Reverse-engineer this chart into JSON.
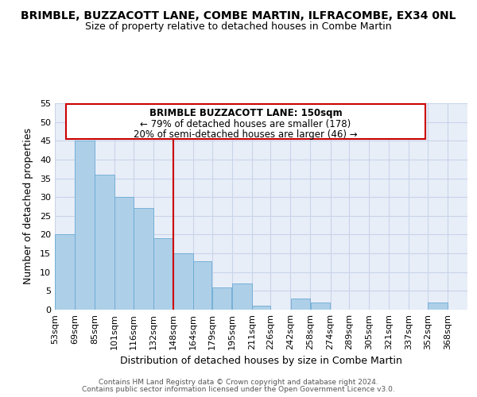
{
  "title": "BRIMBLE, BUZZACOTT LANE, COMBE MARTIN, ILFRACOMBE, EX34 0NL",
  "subtitle": "Size of property relative to detached houses in Combe Martin",
  "xlabel": "Distribution of detached houses by size in Combe Martin",
  "ylabel": "Number of detached properties",
  "footer1": "Contains HM Land Registry data © Crown copyright and database right 2024.",
  "footer2": "Contains public sector information licensed under the Open Government Licence v3.0.",
  "bar_left_edges": [
    53,
    69,
    85,
    101,
    116,
    132,
    148,
    164,
    179,
    195,
    211,
    226,
    242,
    258,
    274,
    289,
    305,
    321,
    337,
    352
  ],
  "bar_heights": [
    20,
    45,
    36,
    30,
    27,
    19,
    15,
    13,
    6,
    7,
    1,
    0,
    3,
    2,
    0,
    0,
    0,
    0,
    0,
    2
  ],
  "bar_widths": [
    16,
    16,
    16,
    15,
    16,
    16,
    16,
    15,
    16,
    16,
    15,
    16,
    16,
    16,
    15,
    16,
    16,
    16,
    15,
    16
  ],
  "tick_labels": [
    "53sqm",
    "69sqm",
    "85sqm",
    "101sqm",
    "116sqm",
    "132sqm",
    "148sqm",
    "164sqm",
    "179sqm",
    "195sqm",
    "211sqm",
    "226sqm",
    "242sqm",
    "258sqm",
    "274sqm",
    "289sqm",
    "305sqm",
    "321sqm",
    "337sqm",
    "352sqm",
    "368sqm"
  ],
  "tick_positions": [
    53,
    69,
    85,
    101,
    116,
    132,
    148,
    164,
    179,
    195,
    211,
    226,
    242,
    258,
    274,
    289,
    305,
    321,
    337,
    352,
    368
  ],
  "bar_color": "#aecfe8",
  "bar_edge_color": "#6aaad4",
  "vline_x": 148,
  "vline_color": "#cc0000",
  "annotation_box_title": "BRIMBLE BUZZACOTT LANE: 150sqm",
  "annotation_line1": "← 79% of detached houses are smaller (178)",
  "annotation_line2": "20% of semi-detached houses are larger (46) →",
  "annotation_box_color": "#ffffff",
  "annotation_box_edge": "#cc0000",
  "ylim": [
    0,
    55
  ],
  "xlim": [
    53,
    384
  ],
  "background_color": "#ffffff",
  "plot_bg_color": "#e8eef8",
  "grid_color": "#c8d4e8",
  "title_fontsize": 10,
  "subtitle_fontsize": 9,
  "annotation_fontsize": 8.5,
  "footer_fontsize": 6.5
}
